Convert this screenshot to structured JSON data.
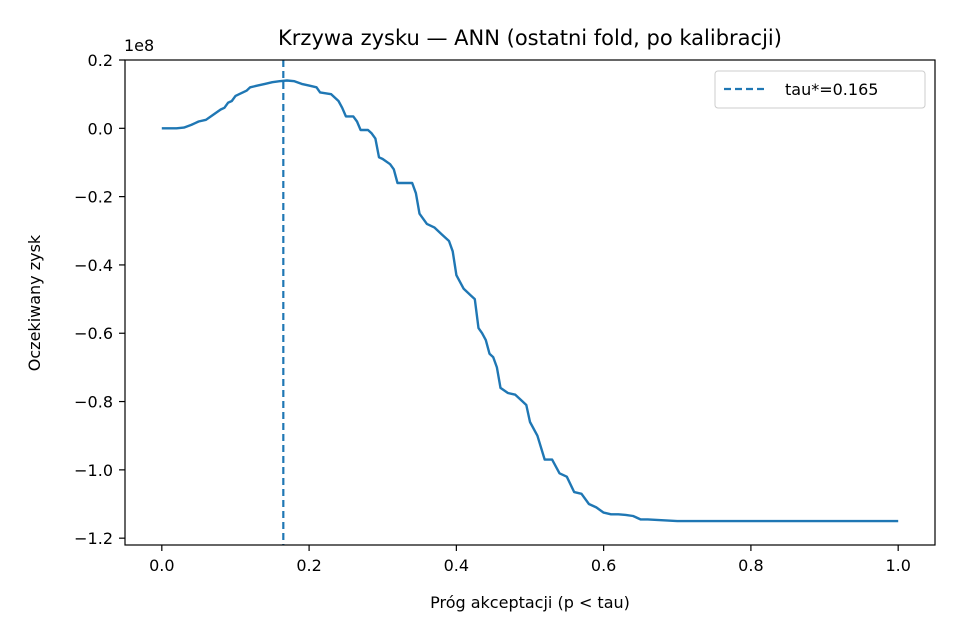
{
  "chart_data": {
    "type": "line",
    "title": "Krzywa zysku — ANN (ostatni fold, po kalibracji)",
    "xlabel": "Próg akceptacji (p < tau)",
    "ylabel": "Oczekiwany zysk",
    "y_offset_label": "1e8",
    "xlim": [
      -0.05,
      1.05
    ],
    "ylim": [
      -1.22,
      0.2
    ],
    "x_ticks": [
      0.0,
      0.2,
      0.4,
      0.6,
      0.8,
      1.0
    ],
    "x_tick_labels": [
      "0.0",
      "0.2",
      "0.4",
      "0.6",
      "0.8",
      "1.0"
    ],
    "y_ticks": [
      0.2,
      0.0,
      -0.2,
      -0.4,
      -0.6,
      -0.8,
      -1.0,
      -1.2
    ],
    "y_tick_labels": [
      "0.2",
      "0.0",
      "−0.2",
      "−0.4",
      "−0.6",
      "−0.8",
      "−1.0",
      "−1.2"
    ],
    "grid": false,
    "legend_position": "top-right",
    "line_color": "#1f77b4",
    "series": [
      {
        "x": [
          0.0,
          0.02,
          0.03,
          0.04,
          0.045,
          0.05,
          0.06,
          0.07,
          0.08,
          0.085,
          0.09,
          0.095,
          0.1,
          0.105,
          0.11,
          0.115,
          0.12,
          0.13,
          0.14,
          0.15,
          0.16,
          0.17,
          0.18,
          0.19,
          0.2,
          0.21,
          0.215,
          0.23,
          0.24,
          0.245,
          0.25,
          0.26,
          0.265,
          0.27,
          0.28,
          0.285,
          0.29,
          0.295,
          0.3,
          0.31,
          0.315,
          0.32,
          0.34,
          0.345,
          0.35,
          0.36,
          0.37,
          0.38,
          0.39,
          0.395,
          0.4,
          0.41,
          0.415,
          0.42,
          0.425,
          0.43,
          0.435,
          0.44,
          0.445,
          0.45,
          0.455,
          0.46,
          0.47,
          0.48,
          0.49,
          0.495,
          0.5,
          0.51,
          0.52,
          0.53,
          0.54,
          0.55,
          0.56,
          0.57,
          0.58,
          0.59,
          0.6,
          0.61,
          0.62,
          0.63,
          0.64,
          0.65,
          0.66,
          0.7,
          0.8,
          1.0
        ],
        "y": [
          0.0,
          0.0,
          0.002,
          0.01,
          0.015,
          0.02,
          0.025,
          0.04,
          0.055,
          0.06,
          0.075,
          0.08,
          0.095,
          0.1,
          0.105,
          0.11,
          0.12,
          0.125,
          0.13,
          0.135,
          0.138,
          0.14,
          0.138,
          0.13,
          0.125,
          0.12,
          0.105,
          0.1,
          0.08,
          0.06,
          0.035,
          0.035,
          0.02,
          -0.005,
          -0.005,
          -0.015,
          -0.03,
          -0.085,
          -0.09,
          -0.105,
          -0.12,
          -0.16,
          -0.16,
          -0.19,
          -0.25,
          -0.28,
          -0.29,
          -0.31,
          -0.33,
          -0.36,
          -0.43,
          -0.47,
          -0.48,
          -0.49,
          -0.5,
          -0.585,
          -0.6,
          -0.62,
          -0.66,
          -0.67,
          -0.7,
          -0.76,
          -0.775,
          -0.78,
          -0.8,
          -0.81,
          -0.86,
          -0.9,
          -0.97,
          -0.97,
          -1.01,
          -1.02,
          -1.065,
          -1.07,
          -1.1,
          -1.11,
          -1.125,
          -1.13,
          -1.13,
          -1.132,
          -1.135,
          -1.145,
          -1.145,
          -1.15,
          -1.15,
          -1.15
        ]
      }
    ],
    "vline": {
      "x": 0.165,
      "legend_label": "tau*=0.165",
      "style": "dashed"
    }
  }
}
